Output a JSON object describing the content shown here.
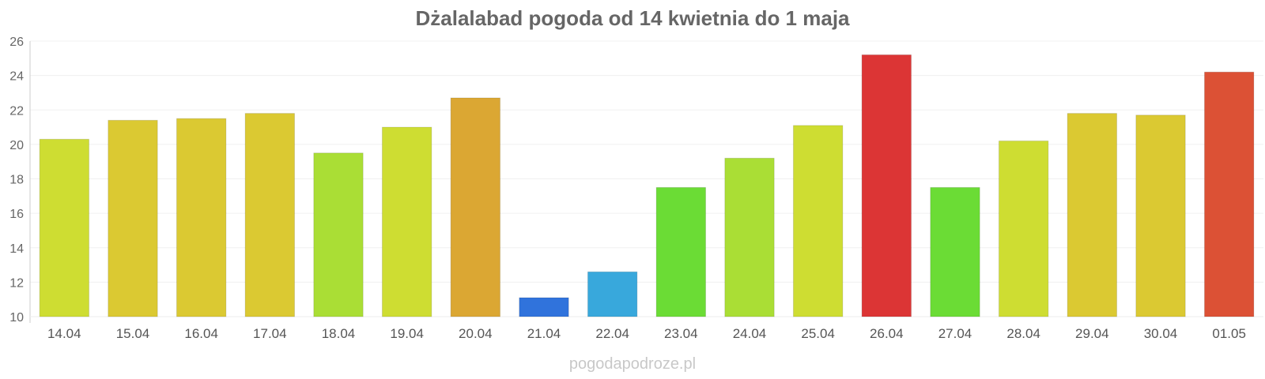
{
  "chart_data": {
    "type": "bar",
    "title": "Dżalalabad pogoda od 14 kwietnia do 1 maja",
    "xlabel": "",
    "ylabel": "",
    "ylim": [
      10,
      26
    ],
    "yticks": [
      10,
      12,
      14,
      16,
      18,
      20,
      22,
      24,
      26
    ],
    "grid": true,
    "categories": [
      "14.04",
      "15.04",
      "16.04",
      "17.04",
      "18.04",
      "19.04",
      "20.04",
      "21.04",
      "22.04",
      "23.04",
      "24.04",
      "25.04",
      "26.04",
      "27.04",
      "28.04",
      "29.04",
      "30.04",
      "01.05"
    ],
    "values": [
      20.3,
      21.4,
      21.5,
      21.8,
      19.5,
      21.0,
      22.7,
      11.1,
      12.6,
      17.5,
      19.2,
      21.1,
      25.2,
      17.5,
      20.2,
      21.8,
      21.7,
      24.2
    ],
    "colors": [
      "#cedd32",
      "#dbc932",
      "#dbc932",
      "#dbc932",
      "#aade35",
      "#cedd32",
      "#dba733",
      "#3073dc",
      "#38a8dc",
      "#6bdc35",
      "#aade35",
      "#cedd32",
      "#dc3535",
      "#6bdc35",
      "#cedd32",
      "#dbc932",
      "#dbc932",
      "#dc5135"
    ]
  },
  "footer": {
    "watermark": "pogodapodroze.pl"
  }
}
